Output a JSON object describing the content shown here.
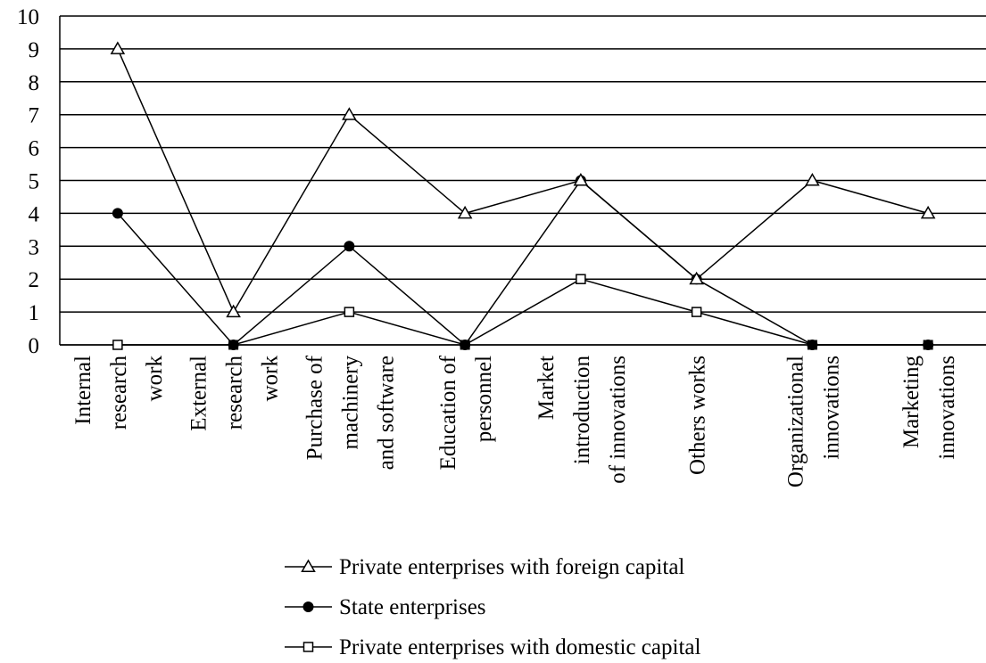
{
  "chart_data": {
    "type": "line",
    "categories": [
      [
        "Internal",
        "research",
        "work"
      ],
      [
        "External",
        "research",
        "work"
      ],
      [
        "Purchase of",
        "machinery",
        "and software"
      ],
      [
        "Education of",
        "personnel"
      ],
      [
        "Market",
        "introduction",
        "of innovations"
      ],
      [
        "Others works"
      ],
      [
        "Organizational",
        "innovations"
      ],
      [
        "Marketing",
        "innovations"
      ]
    ],
    "yticks": [
      0,
      1,
      2,
      3,
      4,
      5,
      6,
      7,
      8,
      9,
      10
    ],
    "ylim": [
      0,
      10
    ],
    "grid": true,
    "legend_position": "bottom",
    "series": [
      {
        "name": "Private enterprises with foreign capital",
        "marker": "open-triangle",
        "values": [
          9,
          1,
          7,
          4,
          5,
          2,
          5,
          4
        ]
      },
      {
        "name": "State enterprises",
        "marker": "filled-circle",
        "values": [
          4,
          0,
          3,
          0,
          5,
          2,
          0,
          0
        ]
      },
      {
        "name": "Private enterprises with domestic capital",
        "marker": "open-square",
        "values": [
          0,
          0,
          1,
          0,
          2,
          1,
          0,
          0
        ]
      }
    ],
    "colors": {
      "line": "#000000",
      "grid": "#000000",
      "marker_fill_open": "#ffffff"
    }
  }
}
